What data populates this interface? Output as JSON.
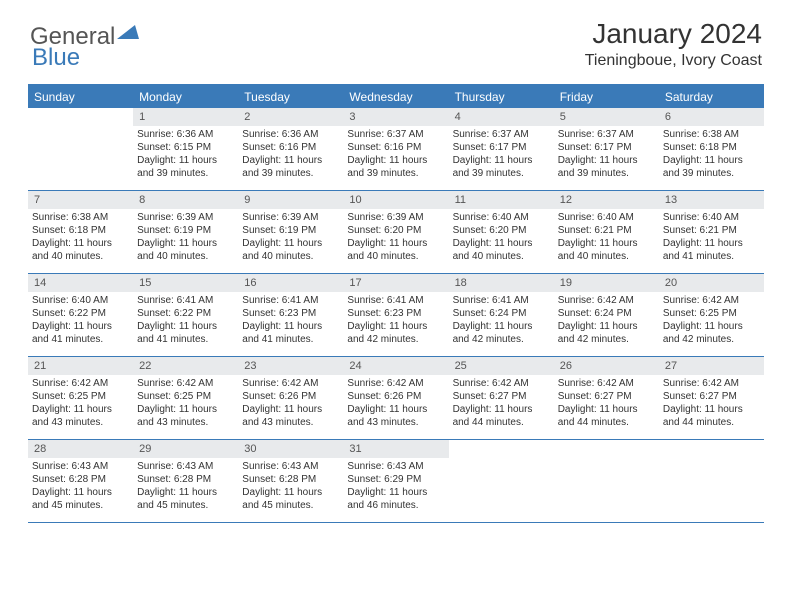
{
  "logo": {
    "word1": "General",
    "word2": "Blue"
  },
  "title": "January 2024",
  "location": "Tieningboue, Ivory Coast",
  "colors": {
    "header_bg": "#3a7ab8",
    "header_text": "#ffffff",
    "daynum_bg": "#e8eaec",
    "body_text": "#333333",
    "page_bg": "#ffffff"
  },
  "fonts": {
    "title_size": 28,
    "location_size": 16,
    "weekday_size": 12,
    "cell_size": 10
  },
  "weekdays": [
    "Sunday",
    "Monday",
    "Tuesday",
    "Wednesday",
    "Thursday",
    "Friday",
    "Saturday"
  ],
  "weeks": [
    [
      null,
      {
        "n": "1",
        "sr": "Sunrise: 6:36 AM",
        "ss": "Sunset: 6:15 PM",
        "d1": "Daylight: 11 hours",
        "d2": "and 39 minutes."
      },
      {
        "n": "2",
        "sr": "Sunrise: 6:36 AM",
        "ss": "Sunset: 6:16 PM",
        "d1": "Daylight: 11 hours",
        "d2": "and 39 minutes."
      },
      {
        "n": "3",
        "sr": "Sunrise: 6:37 AM",
        "ss": "Sunset: 6:16 PM",
        "d1": "Daylight: 11 hours",
        "d2": "and 39 minutes."
      },
      {
        "n": "4",
        "sr": "Sunrise: 6:37 AM",
        "ss": "Sunset: 6:17 PM",
        "d1": "Daylight: 11 hours",
        "d2": "and 39 minutes."
      },
      {
        "n": "5",
        "sr": "Sunrise: 6:37 AM",
        "ss": "Sunset: 6:17 PM",
        "d1": "Daylight: 11 hours",
        "d2": "and 39 minutes."
      },
      {
        "n": "6",
        "sr": "Sunrise: 6:38 AM",
        "ss": "Sunset: 6:18 PM",
        "d1": "Daylight: 11 hours",
        "d2": "and 39 minutes."
      }
    ],
    [
      {
        "n": "7",
        "sr": "Sunrise: 6:38 AM",
        "ss": "Sunset: 6:18 PM",
        "d1": "Daylight: 11 hours",
        "d2": "and 40 minutes."
      },
      {
        "n": "8",
        "sr": "Sunrise: 6:39 AM",
        "ss": "Sunset: 6:19 PM",
        "d1": "Daylight: 11 hours",
        "d2": "and 40 minutes."
      },
      {
        "n": "9",
        "sr": "Sunrise: 6:39 AM",
        "ss": "Sunset: 6:19 PM",
        "d1": "Daylight: 11 hours",
        "d2": "and 40 minutes."
      },
      {
        "n": "10",
        "sr": "Sunrise: 6:39 AM",
        "ss": "Sunset: 6:20 PM",
        "d1": "Daylight: 11 hours",
        "d2": "and 40 minutes."
      },
      {
        "n": "11",
        "sr": "Sunrise: 6:40 AM",
        "ss": "Sunset: 6:20 PM",
        "d1": "Daylight: 11 hours",
        "d2": "and 40 minutes."
      },
      {
        "n": "12",
        "sr": "Sunrise: 6:40 AM",
        "ss": "Sunset: 6:21 PM",
        "d1": "Daylight: 11 hours",
        "d2": "and 40 minutes."
      },
      {
        "n": "13",
        "sr": "Sunrise: 6:40 AM",
        "ss": "Sunset: 6:21 PM",
        "d1": "Daylight: 11 hours",
        "d2": "and 41 minutes."
      }
    ],
    [
      {
        "n": "14",
        "sr": "Sunrise: 6:40 AM",
        "ss": "Sunset: 6:22 PM",
        "d1": "Daylight: 11 hours",
        "d2": "and 41 minutes."
      },
      {
        "n": "15",
        "sr": "Sunrise: 6:41 AM",
        "ss": "Sunset: 6:22 PM",
        "d1": "Daylight: 11 hours",
        "d2": "and 41 minutes."
      },
      {
        "n": "16",
        "sr": "Sunrise: 6:41 AM",
        "ss": "Sunset: 6:23 PM",
        "d1": "Daylight: 11 hours",
        "d2": "and 41 minutes."
      },
      {
        "n": "17",
        "sr": "Sunrise: 6:41 AM",
        "ss": "Sunset: 6:23 PM",
        "d1": "Daylight: 11 hours",
        "d2": "and 42 minutes."
      },
      {
        "n": "18",
        "sr": "Sunrise: 6:41 AM",
        "ss": "Sunset: 6:24 PM",
        "d1": "Daylight: 11 hours",
        "d2": "and 42 minutes."
      },
      {
        "n": "19",
        "sr": "Sunrise: 6:42 AM",
        "ss": "Sunset: 6:24 PM",
        "d1": "Daylight: 11 hours",
        "d2": "and 42 minutes."
      },
      {
        "n": "20",
        "sr": "Sunrise: 6:42 AM",
        "ss": "Sunset: 6:25 PM",
        "d1": "Daylight: 11 hours",
        "d2": "and 42 minutes."
      }
    ],
    [
      {
        "n": "21",
        "sr": "Sunrise: 6:42 AM",
        "ss": "Sunset: 6:25 PM",
        "d1": "Daylight: 11 hours",
        "d2": "and 43 minutes."
      },
      {
        "n": "22",
        "sr": "Sunrise: 6:42 AM",
        "ss": "Sunset: 6:25 PM",
        "d1": "Daylight: 11 hours",
        "d2": "and 43 minutes."
      },
      {
        "n": "23",
        "sr": "Sunrise: 6:42 AM",
        "ss": "Sunset: 6:26 PM",
        "d1": "Daylight: 11 hours",
        "d2": "and 43 minutes."
      },
      {
        "n": "24",
        "sr": "Sunrise: 6:42 AM",
        "ss": "Sunset: 6:26 PM",
        "d1": "Daylight: 11 hours",
        "d2": "and 43 minutes."
      },
      {
        "n": "25",
        "sr": "Sunrise: 6:42 AM",
        "ss": "Sunset: 6:27 PM",
        "d1": "Daylight: 11 hours",
        "d2": "and 44 minutes."
      },
      {
        "n": "26",
        "sr": "Sunrise: 6:42 AM",
        "ss": "Sunset: 6:27 PM",
        "d1": "Daylight: 11 hours",
        "d2": "and 44 minutes."
      },
      {
        "n": "27",
        "sr": "Sunrise: 6:42 AM",
        "ss": "Sunset: 6:27 PM",
        "d1": "Daylight: 11 hours",
        "d2": "and 44 minutes."
      }
    ],
    [
      {
        "n": "28",
        "sr": "Sunrise: 6:43 AM",
        "ss": "Sunset: 6:28 PM",
        "d1": "Daylight: 11 hours",
        "d2": "and 45 minutes."
      },
      {
        "n": "29",
        "sr": "Sunrise: 6:43 AM",
        "ss": "Sunset: 6:28 PM",
        "d1": "Daylight: 11 hours",
        "d2": "and 45 minutes."
      },
      {
        "n": "30",
        "sr": "Sunrise: 6:43 AM",
        "ss": "Sunset: 6:28 PM",
        "d1": "Daylight: 11 hours",
        "d2": "and 45 minutes."
      },
      {
        "n": "31",
        "sr": "Sunrise: 6:43 AM",
        "ss": "Sunset: 6:29 PM",
        "d1": "Daylight: 11 hours",
        "d2": "and 46 minutes."
      },
      null,
      null,
      null
    ]
  ]
}
